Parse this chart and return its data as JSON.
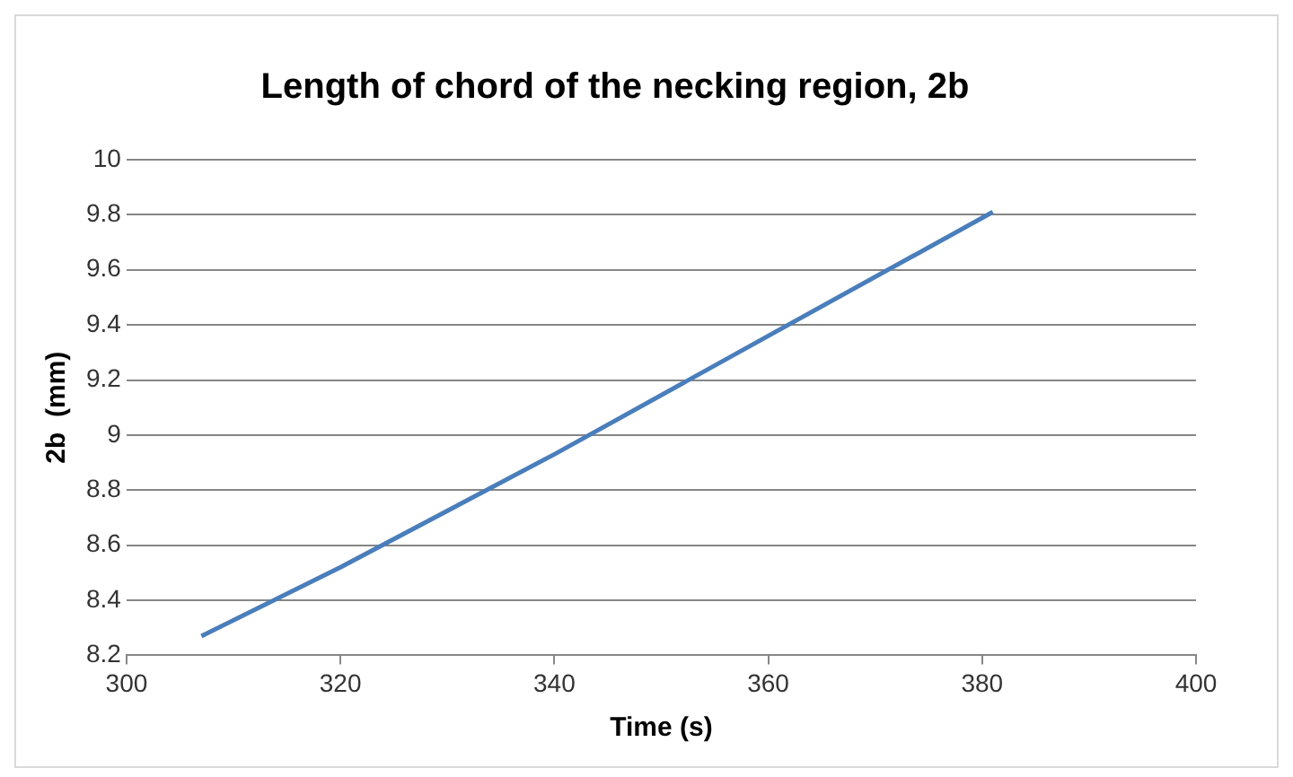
{
  "chart_data": {
    "type": "line",
    "title": "Length of chord of the necking region, 2b",
    "xlabel": "Time (s)",
    "ylabel": "2b  (mm)",
    "x": [
      307,
      320,
      340,
      360,
      381
    ],
    "series": [
      {
        "color": "#4a7ebb",
        "values": [
          8.27,
          8.52,
          8.93,
          9.36,
          9.81
        ]
      }
    ],
    "xlim": [
      300,
      400
    ],
    "xticks": [
      300,
      320,
      340,
      360,
      380,
      400
    ],
    "ylim": [
      8.2,
      10
    ],
    "yticks": [
      8.2,
      8.4,
      8.6,
      8.8,
      9,
      9.2,
      9.4,
      9.6,
      9.8,
      10
    ],
    "grid": "y",
    "legend": false,
    "marker": "none",
    "line_style": "solid"
  }
}
